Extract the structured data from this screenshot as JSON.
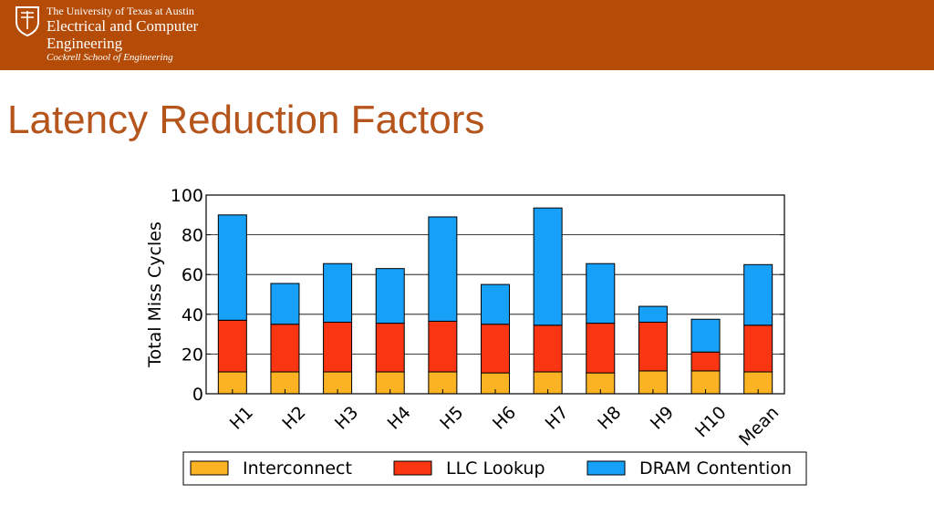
{
  "header": {
    "university": "The University of Texas at Austin",
    "department_line1": "Electrical and Computer",
    "department_line2": "Engineering",
    "school": "Cockrell School of Engineering",
    "banner_color": "#b44b06"
  },
  "slide": {
    "title": "Latency Reduction Factors",
    "title_color": "#b5541b"
  },
  "chart_data": {
    "type": "bar",
    "stacked": true,
    "title": "",
    "xlabel": "",
    "ylabel": "Total Miss Cycles",
    "ylim": [
      0,
      100
    ],
    "yticks": [
      0,
      20,
      40,
      60,
      80,
      100
    ],
    "grid": "y",
    "legend_position": "bottom",
    "categories": [
      "H1",
      "H2",
      "H3",
      "H4",
      "H5",
      "H6",
      "H7",
      "H8",
      "H9",
      "H10",
      "Mean"
    ],
    "series": [
      {
        "name": "Interconnect",
        "color": "#fbb323",
        "values": [
          11,
          11,
          11,
          11,
          11,
          10.5,
          11,
          10.5,
          11.5,
          11.5,
          11
        ]
      },
      {
        "name": "LLC Lookup",
        "color": "#f93512",
        "values": [
          26,
          24,
          25,
          24.5,
          25.5,
          24.5,
          23.5,
          25,
          24.5,
          9.5,
          23.5
        ]
      },
      {
        "name": "DRAM Contention",
        "color": "#17a0f8",
        "values": [
          53,
          20.5,
          29.5,
          27.5,
          52.5,
          20,
          59,
          30,
          8,
          16.5,
          30.5
        ]
      }
    ]
  }
}
